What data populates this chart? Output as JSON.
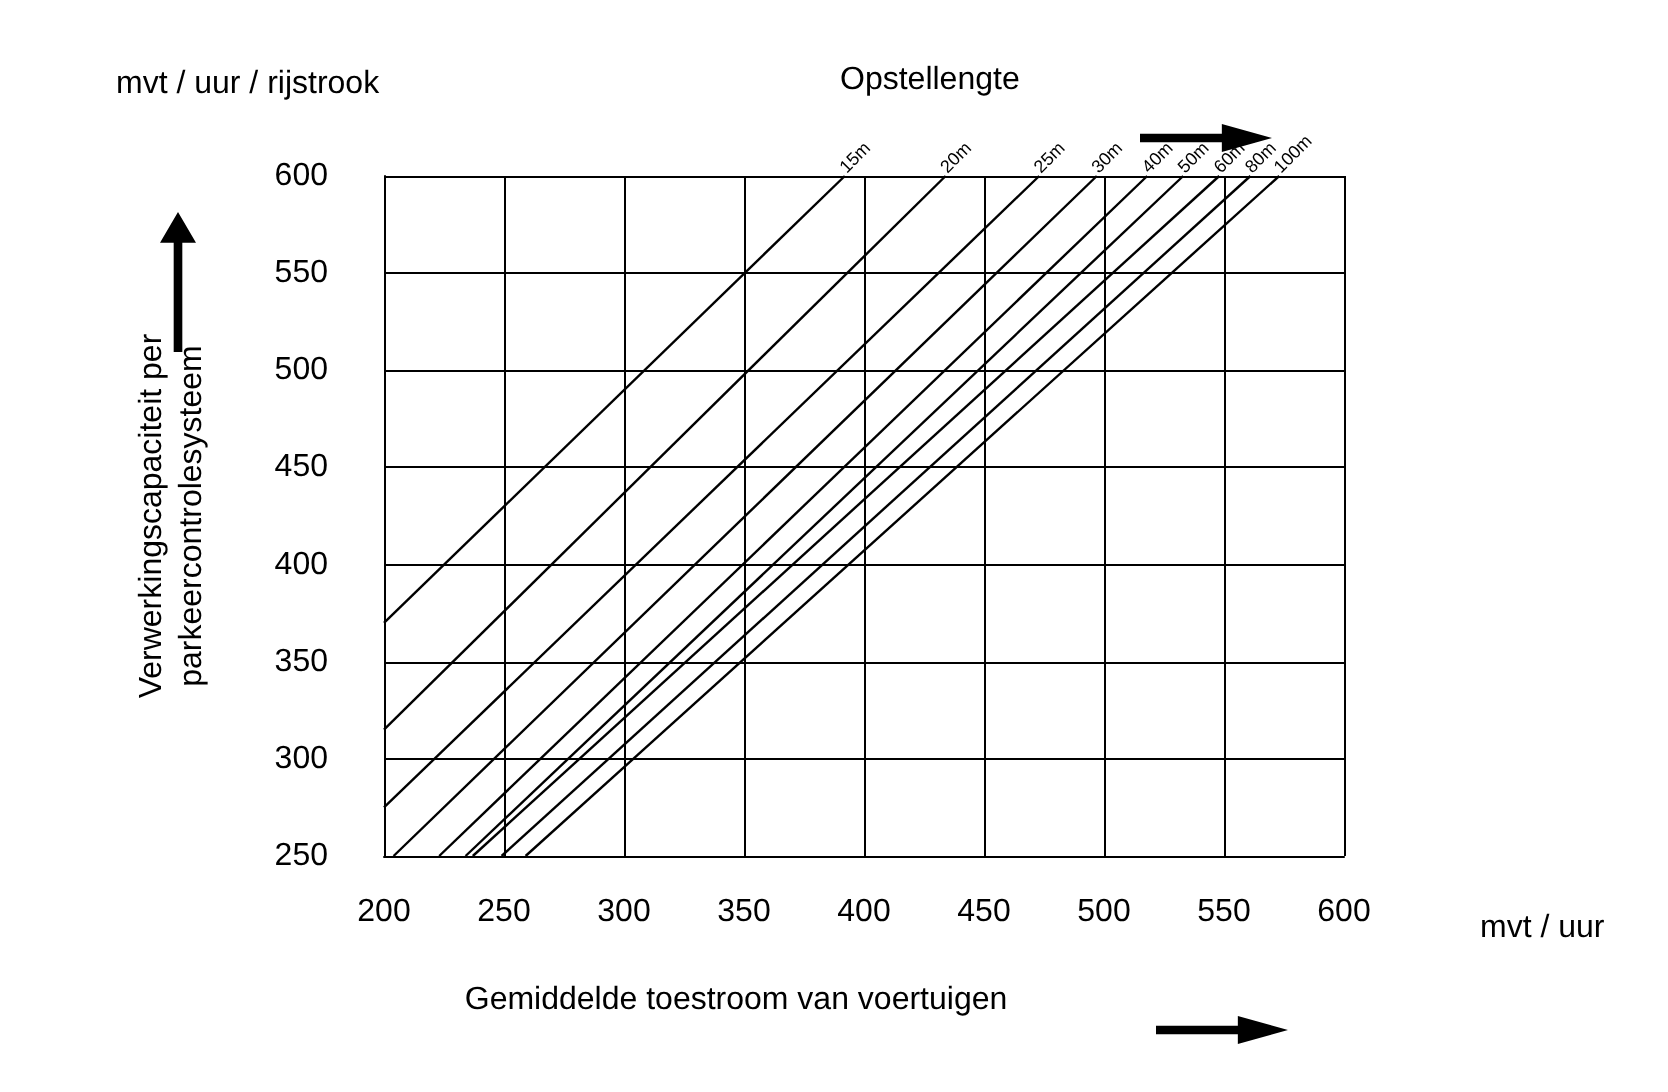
{
  "chart_data": {
    "type": "line",
    "xlabel": "Gemiddelde toestroom van voertuigen",
    "ylabel": "Verwerkingscapaciteit per\nparkeercontrolesysteem",
    "annotations": [
      "mvt / uur / rijstrook",
      "Opstellengte",
      "mvt / uur"
    ],
    "xlim": [
      200,
      600
    ],
    "xticks": [
      200,
      250,
      300,
      350,
      400,
      450,
      500,
      550,
      600
    ],
    "ylim": [
      250,
      600
    ],
    "yticks": [
      250,
      300,
      350,
      400,
      450,
      500,
      550,
      600
    ],
    "grid": true,
    "legend": false,
    "marker": "none",
    "line_style": "solid",
    "series": [
      {
        "name": "15m",
        "color": "#000000",
        "x": [
          200,
          392
        ],
        "values": [
          370,
          600
        ]
      },
      {
        "name": "20m",
        "color": "#000000",
        "x": [
          200,
          434
        ],
        "values": [
          315,
          600
        ]
      },
      {
        "name": "25m",
        "color": "#000000",
        "x": [
          200,
          473
        ],
        "values": [
          275,
          600
        ]
      },
      {
        "name": "30m",
        "color": "#000000",
        "x": [
          204,
          497
        ],
        "values": [
          250,
          600
        ]
      },
      {
        "name": "40m",
        "color": "#000000",
        "x": [
          223,
          518
        ],
        "values": [
          250,
          600
        ]
      },
      {
        "name": "50m",
        "color": "#000000",
        "x": [
          234,
          533
        ],
        "values": [
          250,
          600
        ]
      },
      {
        "name": "60m",
        "color": "#000000",
        "x": [
          237,
          548
        ],
        "values": [
          250,
          600
        ]
      },
      {
        "name": "80m",
        "color": "#000000",
        "x": [
          249,
          561
        ],
        "values": [
          250,
          600
        ]
      },
      {
        "name": "100m",
        "color": "#000000",
        "x": [
          259,
          573
        ],
        "values": [
          250,
          600
        ]
      }
    ]
  }
}
